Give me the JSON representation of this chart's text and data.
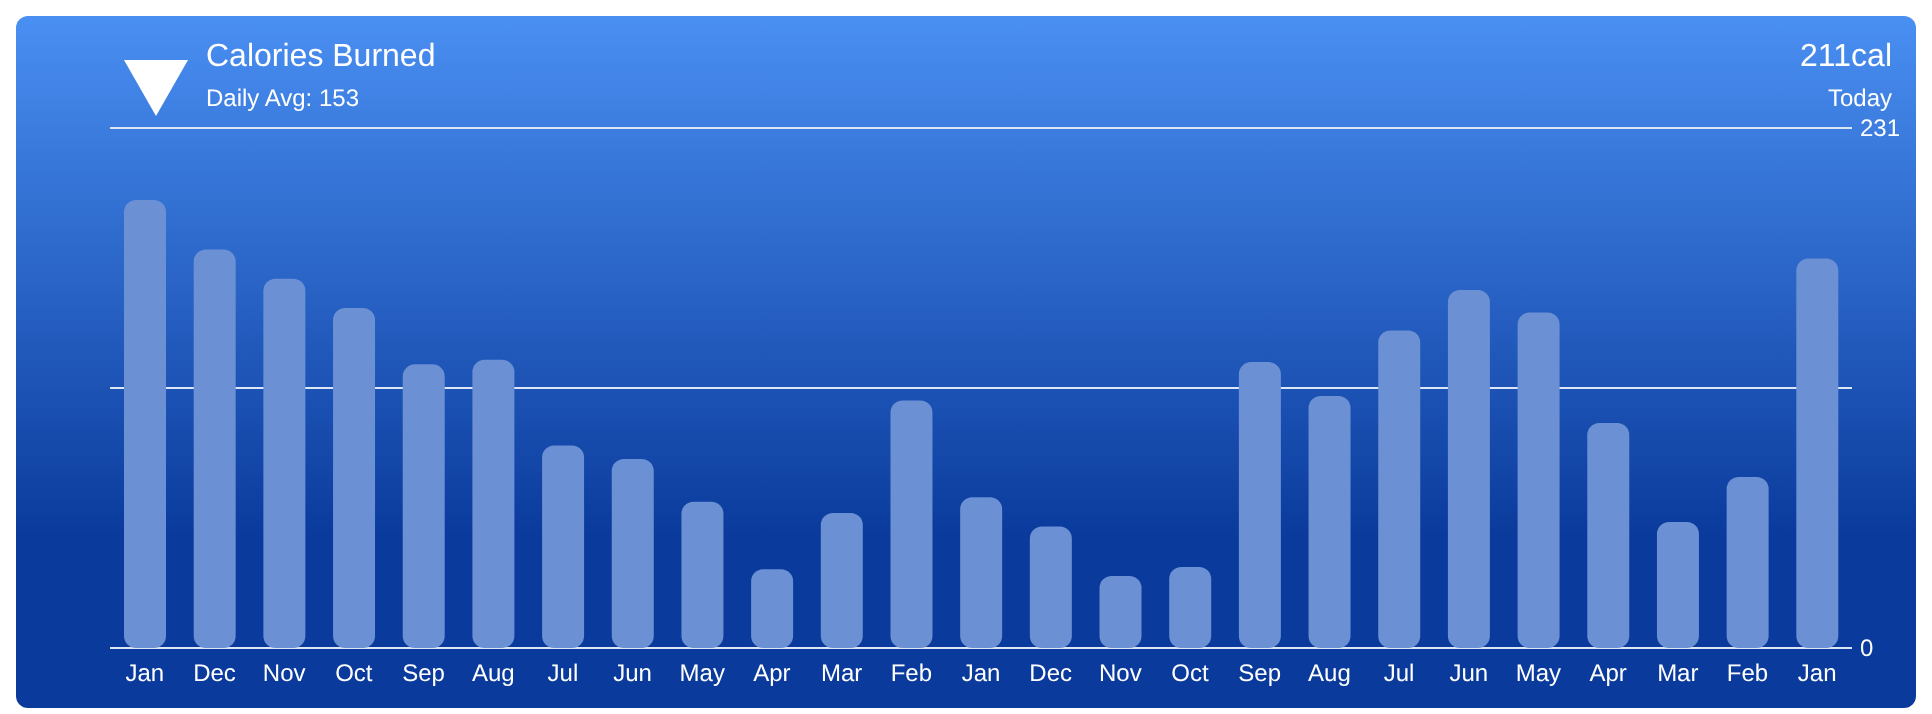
{
  "chart_data": {
    "type": "bar",
    "title": "Calories Burned",
    "subtitle": "Daily Avg: 153",
    "annotations": [
      "211cal",
      "Today"
    ],
    "categories": [
      "Jan",
      "Dec",
      "Nov",
      "Oct",
      "Sep",
      "Aug",
      "Jul",
      "Jun",
      "May",
      "Apr",
      "Mar",
      "Feb",
      "Jan",
      "Dec",
      "Nov",
      "Oct",
      "Sep",
      "Aug",
      "Jul",
      "Jun",
      "May",
      "Apr",
      "Mar",
      "Feb",
      "Jan"
    ],
    "values": [
      199,
      177,
      164,
      151,
      126,
      128,
      90,
      84,
      65,
      35,
      60,
      110,
      67,
      54,
      32,
      36,
      127,
      112,
      141,
      159,
      149,
      100,
      56,
      76,
      173
    ],
    "color": "#6b90d4",
    "ylim": [
      0,
      231
    ],
    "yticks": [
      0,
      {
        "value": 115.5,
        "label": null
      },
      231
    ],
    "grid": "y"
  }
}
